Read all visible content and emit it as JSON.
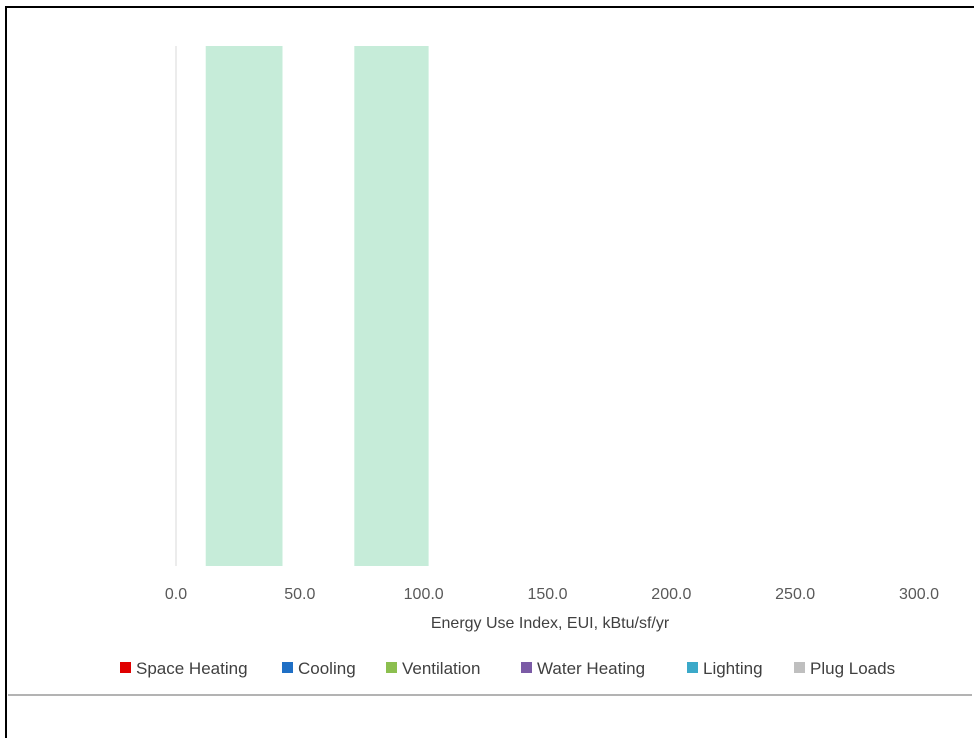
{
  "chart_data": {
    "type": "bar",
    "orientation": "horizontal",
    "xlabel": "Energy Use Index, EUI,  kBtu/sf/yr",
    "ylabel": "",
    "xlim": [
      0,
      300
    ],
    "x_ticks": [
      "0.0",
      "50.0",
      "100.0",
      "150.0",
      "200.0",
      "250.0",
      "300.0"
    ],
    "x_tick_values": [
      0,
      50,
      100,
      150,
      200,
      250,
      300
    ],
    "grid": false,
    "legend_position": "bottom",
    "bars": [
      {
        "start": 12,
        "end": 43,
        "color": "#c6ecd9"
      },
      {
        "start": 72,
        "end": 102,
        "color": "#c6ecd9"
      }
    ],
    "series": [
      {
        "name": "Space Heating",
        "color": "#e00000"
      },
      {
        "name": "Cooling",
        "color": "#1f6fc5"
      },
      {
        "name": "Ventilation",
        "color": "#8cbf4f"
      },
      {
        "name": "Water Heating",
        "color": "#7b5ba6"
      },
      {
        "name": "Lighting",
        "color": "#3ba9c9"
      },
      {
        "name": "Plug Loads",
        "color": "#bfbfbf"
      }
    ]
  }
}
